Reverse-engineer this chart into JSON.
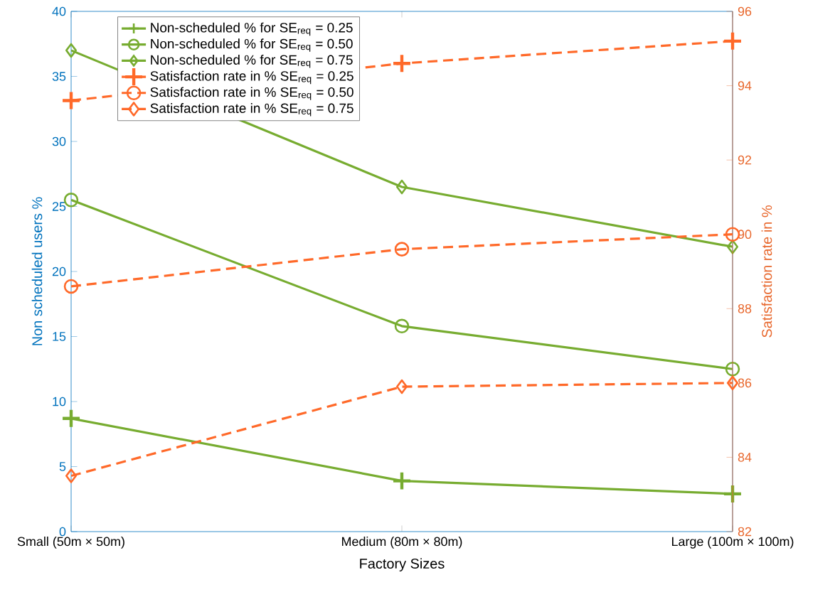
{
  "chart_data": {
    "type": "line",
    "xlabel": "Factory Sizes",
    "ylabel": "Non scheduled users %",
    "y2label": "Satisfaction rate in %",
    "categories": [
      "Small (50m × 50m)",
      "Medium (80m × 80m)",
      "Large (100m × 100m)"
    ],
    "ylim": [
      0,
      40
    ],
    "yticks": [
      0,
      5,
      10,
      15,
      20,
      25,
      30,
      35,
      40
    ],
    "y2lim": [
      82,
      96
    ],
    "y2ticks": [
      82,
      84,
      86,
      88,
      90,
      92,
      94,
      96
    ],
    "legend": "top left",
    "grid": false,
    "series": [
      {
        "name": "Non-scheduled % for SE$_{req}$ = 0.25",
        "color": "#77ac30",
        "values": [
          8.7,
          3.9,
          2.9
        ],
        "marker": "cross",
        "line_style": "solid"
      },
      {
        "name": "Non-scheduled % for SE$_{req}$ = 0.50",
        "color": "#77ac30",
        "values": [
          25.5,
          15.8,
          12.5
        ],
        "marker": "circle",
        "line_style": "solid"
      },
      {
        "name": "Non-scheduled % for SE$_{req}$ = 0.75",
        "color": "#77ac30",
        "values": [
          37.0,
          26.5,
          21.9
        ],
        "marker": "diamond",
        "line_style": "solid"
      },
      {
        "name": "Satisfaction rate in % SE$_{req}$ = 0.25",
        "color": "#ff6929",
        "values": [
          93.6,
          94.6,
          95.2
        ],
        "marker": "cross",
        "line_style": "dashed",
        "axis": "y2"
      },
      {
        "name": "Satisfaction rate in % SE$_{req}$ = 0.50",
        "color": "#ff6929",
        "values": [
          88.6,
          89.6,
          90.0
        ],
        "marker": "circle",
        "line_style": "dashed",
        "axis": "y2"
      },
      {
        "name": "Satisfaction rate in % SE$_{req}$ = 0.75",
        "color": "#ff6929",
        "values": [
          83.5,
          85.9,
          86.0
        ],
        "marker": "diamond",
        "line_style": "dashed",
        "axis": "y2"
      }
    ]
  }
}
